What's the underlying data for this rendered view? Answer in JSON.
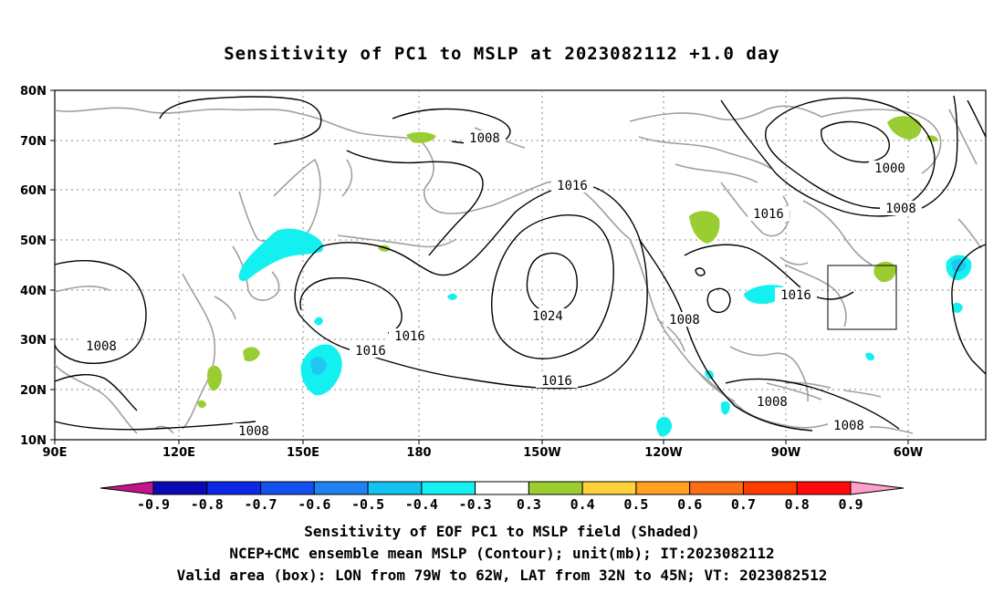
{
  "title": "Sensitivity of PC1 to MSLP at 2023082112 +1.0 day",
  "lat_labels": [
    "80N",
    "70N",
    "60N",
    "50N",
    "40N",
    "30N",
    "20N",
    "10N"
  ],
  "lon_labels": [
    "90E",
    "120E",
    "150E",
    "180",
    "150W",
    "120W",
    "90W",
    "60W"
  ],
  "contour_labels": [
    {
      "text": "1008",
      "where": "north-pacific-low"
    },
    {
      "text": "1000",
      "where": "greenland-low"
    },
    {
      "text": "1008",
      "where": "greenland-outer"
    },
    {
      "text": "1016",
      "where": "gulf-of-alaska"
    },
    {
      "text": "1016",
      "where": "hudson-bay"
    },
    {
      "text": "1024",
      "where": "pacific-high-center"
    },
    {
      "text": "1016",
      "where": "east-of-japan"
    },
    {
      "text": "1016",
      "where": "west-pacific-south"
    },
    {
      "text": "1016",
      "where": "subtropical-pacific"
    },
    {
      "text": "1016",
      "where": "us-east-coast"
    },
    {
      "text": "1008",
      "where": "mexico-west"
    },
    {
      "text": "1008",
      "where": "south-china"
    },
    {
      "text": "1008",
      "where": "philippine-sea"
    },
    {
      "text": "1008",
      "where": "central-america"
    },
    {
      "text": "1008",
      "where": "caribbean"
    }
  ],
  "colorbar": {
    "labels": [
      "-0.9",
      "-0.8",
      "-0.7",
      "-0.6",
      "-0.5",
      "-0.4",
      "-0.3",
      "0.3",
      "0.4",
      "0.5",
      "0.6",
      "0.7",
      "0.8",
      "0.9"
    ],
    "colors": [
      "#c4148c",
      "#0a0ab4",
      "#0a28e6",
      "#1450f0",
      "#1e82f0",
      "#14c3f0",
      "#14f0f0",
      "#ffffff",
      "#9acd32",
      "#ffd23c",
      "#ffa01e",
      "#ff6e14",
      "#ff3c00",
      "#ff0a0a",
      "#ffa0c8"
    ]
  },
  "captions": [
    "Sensitivity of EOF PC1 to MSLP field (Shaded)",
    "NCEP+CMC ensemble mean MSLP (Contour); unit(mb); IT:2023082112",
    "Valid area (box): LON from 79W to 62W, LAT from 32N to 45N; VT: 2023082512"
  ],
  "colors": {
    "coastline": "#a0a0a0",
    "contour": "#000000",
    "positive_shade": "#9acd32",
    "negative_shade": "#14f0f0",
    "negative_core": "#1ec8f0"
  }
}
